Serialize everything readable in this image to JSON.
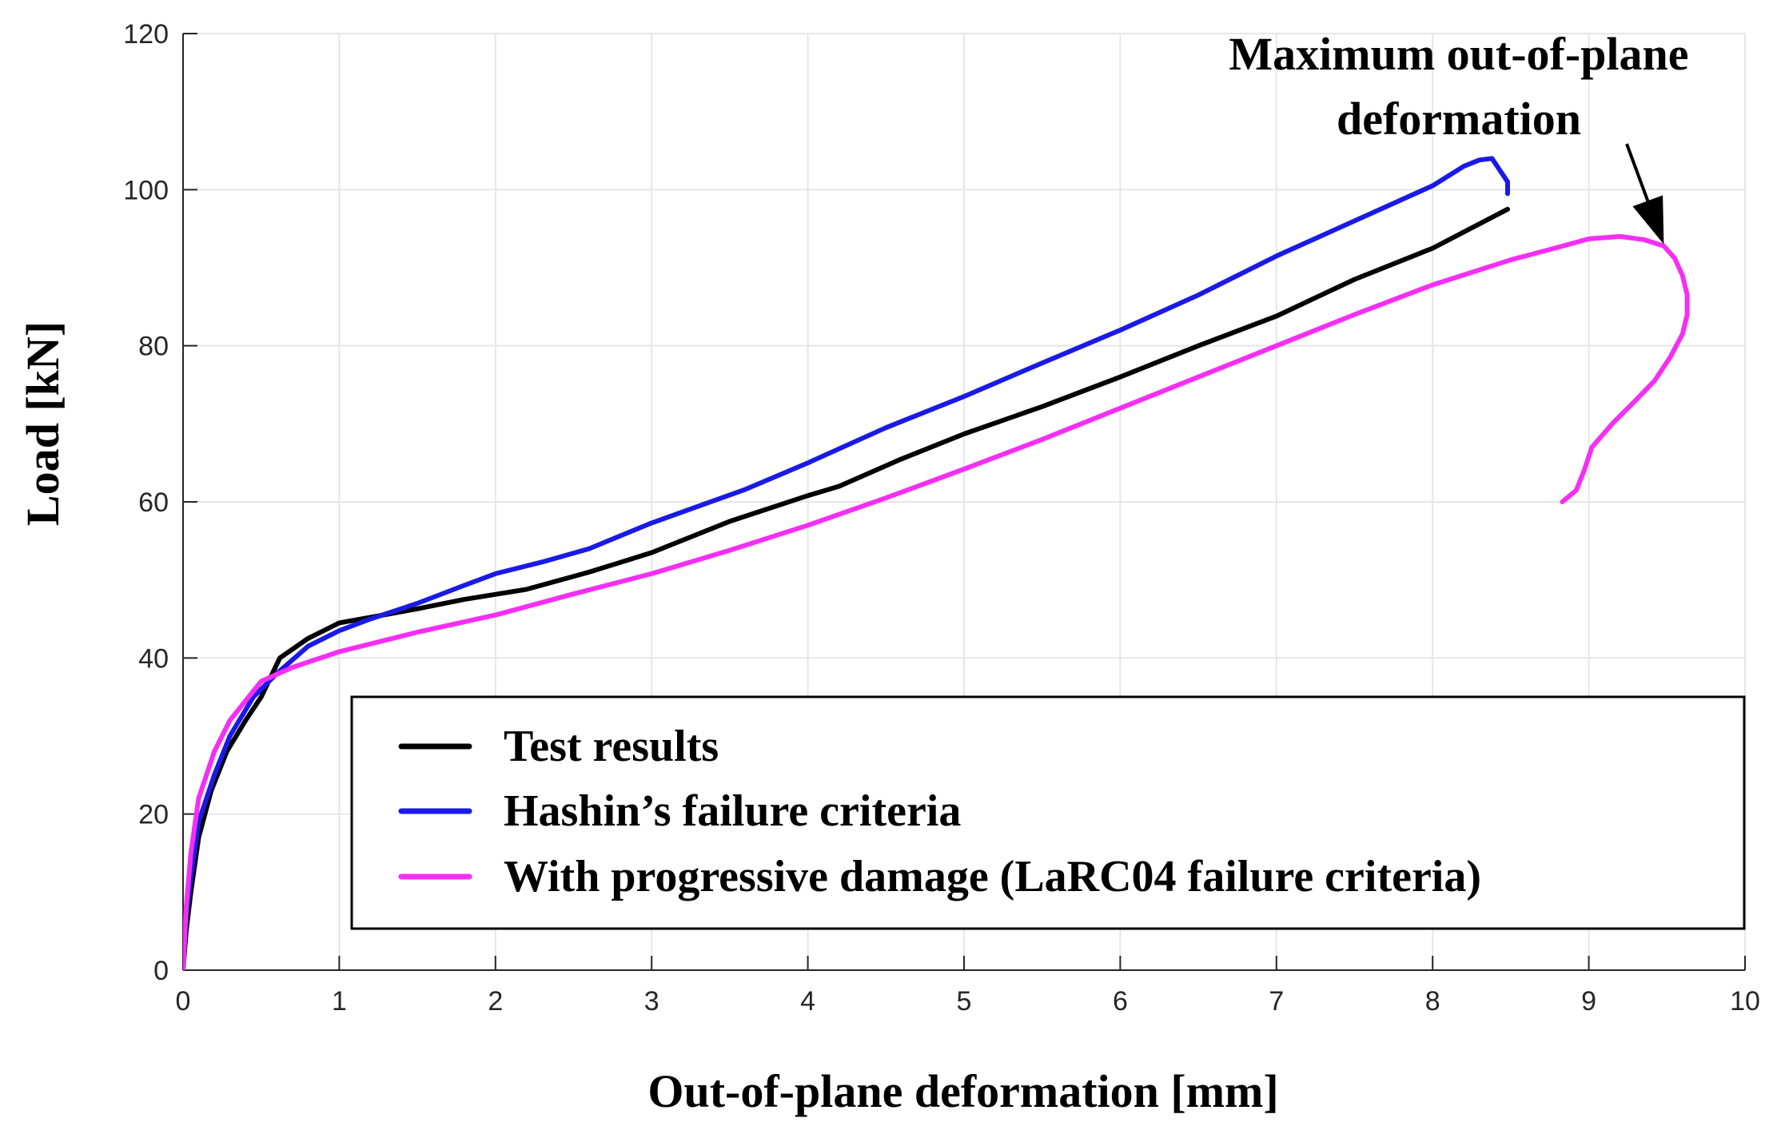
{
  "chart_data": {
    "type": "line",
    "title": "",
    "xlabel": "Out-of-plane deformation [mm]",
    "ylabel": "Load [kN]",
    "xlim": [
      0,
      10
    ],
    "ylim": [
      0,
      120
    ],
    "xticks": [
      0,
      1,
      2,
      3,
      4,
      5,
      6,
      7,
      8,
      9,
      10
    ],
    "yticks": [
      0,
      20,
      40,
      60,
      80,
      100,
      120
    ],
    "grid": true,
    "legend_position": "bottom-right",
    "annotation": {
      "line1": "Maximum out-of-plane",
      "line2": "deformation",
      "target": [
        9.48,
        93
      ]
    },
    "series": [
      {
        "name": "Test results",
        "color": "#000000",
        "x": [
          0.0,
          0.02,
          0.05,
          0.1,
          0.18,
          0.28,
          0.4,
          0.5,
          0.62,
          0.8,
          1.0,
          1.2,
          1.5,
          1.8,
          2.2,
          2.6,
          3.0,
          3.5,
          4.0,
          4.2,
          4.6,
          5.0,
          5.5,
          6.0,
          6.5,
          7.0,
          7.5,
          8.0,
          8.48
        ],
        "y": [
          0,
          5,
          10,
          17,
          23,
          28,
          32,
          35,
          40,
          42.5,
          44.5,
          45.2,
          46.3,
          47.5,
          48.8,
          51,
          53.5,
          57.5,
          60.8,
          62,
          65.5,
          68.7,
          72.2,
          76,
          80,
          83.8,
          88.5,
          92.5,
          97.5
        ]
      },
      {
        "name": "Hashin’s failure criteria",
        "color": "#1a1ae6",
        "x": [
          0.0,
          0.02,
          0.05,
          0.1,
          0.2,
          0.3,
          0.45,
          0.6,
          0.8,
          1.0,
          1.2,
          1.5,
          1.8,
          2.0,
          2.3,
          2.6,
          3.0,
          3.6,
          4.0,
          4.5,
          5.0,
          5.5,
          6.0,
          6.5,
          7.0,
          7.5,
          8.0,
          8.2,
          8.3,
          8.38,
          8.43,
          8.48,
          8.48
        ],
        "y": [
          0,
          7,
          12,
          19,
          25,
          30,
          35,
          38,
          41.5,
          43.5,
          45,
          47,
          49.3,
          50.8,
          52.3,
          54,
          57.3,
          61.6,
          65,
          69.5,
          73.5,
          77.8,
          82,
          86.5,
          91.5,
          96,
          100.5,
          103,
          103.8,
          104,
          102.5,
          101,
          99.5
        ]
      },
      {
        "name": "With progressive damage (LaRC04 failure criteria)",
        "color": "#f52ef5",
        "x": [
          0.0,
          0.02,
          0.05,
          0.1,
          0.2,
          0.3,
          0.4,
          0.5,
          0.7,
          1.0,
          1.5,
          2.0,
          2.5,
          3.0,
          3.5,
          4.0,
          4.5,
          5.0,
          5.5,
          6.0,
          6.5,
          7.0,
          7.5,
          8.0,
          8.5,
          8.8,
          9.0,
          9.2,
          9.35,
          9.48,
          9.55,
          9.6,
          9.63,
          9.63,
          9.6,
          9.52,
          9.42,
          9.3,
          9.15,
          9.02,
          8.97,
          8.92,
          8.83
        ],
        "y": [
          0,
          8,
          15,
          22,
          28,
          32,
          34.5,
          37,
          38.8,
          40.8,
          43.3,
          45.5,
          48.2,
          50.8,
          53.8,
          57,
          60.5,
          64.2,
          68,
          72,
          76,
          80,
          84,
          87.8,
          91,
          92.6,
          93.7,
          94,
          93.6,
          92.8,
          91.2,
          89,
          86.5,
          84,
          81.5,
          78.5,
          75.5,
          73,
          70,
          67,
          64,
          61.5,
          60
        ]
      }
    ]
  }
}
